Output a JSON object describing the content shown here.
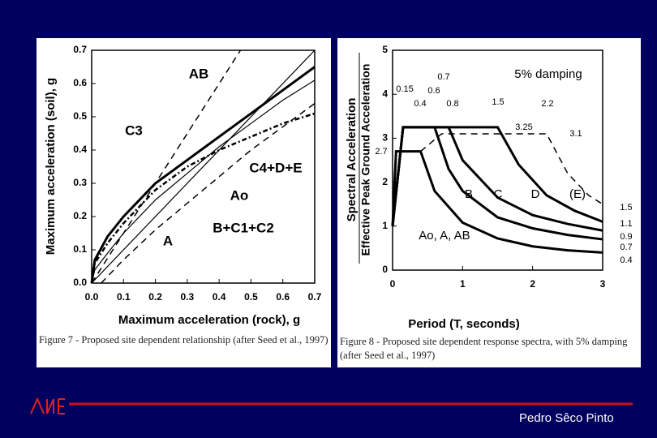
{
  "chart_data": [
    {
      "type": "line",
      "xlabel": "Maximum acceleration (rock), g",
      "ylabel": "Maximum acceleration (soil), g",
      "xlim": [
        0,
        0.7
      ],
      "ylim": [
        0,
        0.7
      ],
      "xticks": [
        {
          "value": 0,
          "label": "0.0"
        },
        0.1,
        0.2,
        0.3,
        0.4,
        0.5,
        0.6,
        0.7
      ],
      "yticks": [
        {
          "value": 0,
          "label": "0.0"
        },
        0.1,
        0.2,
        0.3,
        0.4,
        0.5,
        0.6,
        0.7
      ],
      "series": [
        {
          "name": "AB",
          "color": "#000000",
          "style": "dashed",
          "x": [
            0,
            0.467
          ],
          "values": [
            0,
            0.7
          ]
        },
        {
          "name": "C3",
          "color": "#000000",
          "style": "thick",
          "x": [
            0,
            0.01,
            0.05,
            0.1,
            0.2,
            0.3,
            0.4,
            0.5,
            0.6,
            0.7
          ],
          "values": [
            0,
            0.07,
            0.14,
            0.2,
            0.3,
            0.37,
            0.44,
            0.51,
            0.58,
            0.65
          ]
        },
        {
          "name": "C4+D+E",
          "color": "#000000",
          "style": "dashdot",
          "x": [
            0,
            0.01,
            0.05,
            0.1,
            0.2,
            0.3,
            0.4,
            0.5,
            0.6,
            0.7
          ],
          "values": [
            0,
            0.06,
            0.12,
            0.18,
            0.28,
            0.35,
            0.4,
            0.44,
            0.48,
            0.51
          ]
        },
        {
          "name": "Ao",
          "color": "#000000",
          "style": "thin",
          "x": [
            0,
            0.7
          ],
          "values": [
            0,
            0.7
          ]
        },
        {
          "name": "B+C1+C2",
          "color": "#000000",
          "style": "thin",
          "x": [
            0,
            0.01,
            0.05,
            0.1,
            0.2,
            0.3,
            0.4,
            0.5,
            0.6,
            0.7
          ],
          "values": [
            0,
            0.04,
            0.09,
            0.15,
            0.25,
            0.33,
            0.41,
            0.48,
            0.55,
            0.61
          ]
        },
        {
          "name": "A",
          "color": "#000000",
          "style": "dashed",
          "x": [
            0.03,
            0.1,
            0.2,
            0.3,
            0.4,
            0.5,
            0.6,
            0.7
          ],
          "values": [
            0,
            0.07,
            0.16,
            0.24,
            0.32,
            0.4,
            0.47,
            0.54
          ]
        }
      ]
    },
    {
      "type": "line",
      "xlabel": "Period (T, seconds)",
      "ylabel": "Spectral Acceleration",
      "ylabel2": "Effective Peak Ground Acceleration",
      "xlim": [
        0,
        3
      ],
      "ylim": [
        0,
        5
      ],
      "xticks": [
        0,
        1,
        2,
        3
      ],
      "yticks": [
        0,
        1,
        2,
        3,
        4,
        5
      ],
      "annotations": [
        "5% damping",
        "0.7",
        "0.15",
        "0.6",
        "0.4",
        "0.8",
        "1.5",
        "2.2",
        "3.25",
        "3.1",
        "2.7",
        "1.5",
        "1.1",
        "0.9",
        "0.7",
        "0.4"
      ],
      "series": [
        {
          "name": "B",
          "color": "#000000",
          "style": "thick",
          "x": [
            0,
            0.15,
            0.6,
            0.8,
            1,
            1.5,
            2,
            2.5,
            3
          ],
          "values": [
            1,
            3.25,
            3.25,
            2.3,
            1.8,
            1.2,
            0.95,
            0.8,
            0.7
          ]
        },
        {
          "name": "C",
          "color": "#000000",
          "style": "thick",
          "x": [
            0,
            0.15,
            0.8,
            1,
            1.5,
            2,
            2.5,
            3
          ],
          "values": [
            1,
            3.25,
            3.25,
            2.5,
            1.65,
            1.25,
            1.05,
            0.9
          ]
        },
        {
          "name": "D",
          "color": "#000000",
          "style": "thick",
          "x": [
            0,
            0.15,
            1.5,
            1.8,
            2.2,
            2.6,
            3
          ],
          "values": [
            1,
            3.25,
            3.25,
            2.4,
            1.7,
            1.35,
            1.1
          ]
        },
        {
          "name": "(E)",
          "color": "#000000",
          "style": "dashed",
          "x": [
            0.4,
            0.7,
            2.2,
            2.5,
            2.8,
            3
          ],
          "values": [
            2.7,
            3.1,
            3.1,
            2.2,
            1.7,
            1.5
          ]
        },
        {
          "name": "Ao, A, AB",
          "color": "#000000",
          "style": "thick",
          "x": [
            0,
            0.05,
            0.4,
            0.6,
            1,
            1.5,
            2,
            2.5,
            3
          ],
          "values": [
            1,
            2.7,
            2.7,
            1.8,
            1.08,
            0.72,
            0.54,
            0.45,
            0.4
          ]
        }
      ]
    }
  ],
  "captions": [
    "Figure 7 - Proposed site dependent relationship (after Seed et al., 1997)",
    "Figure 8 - Proposed site dependent response spectra, with 5% damping (after Seed et al., 1997)"
  ],
  "footer": "Pedro Sêco Pinto"
}
